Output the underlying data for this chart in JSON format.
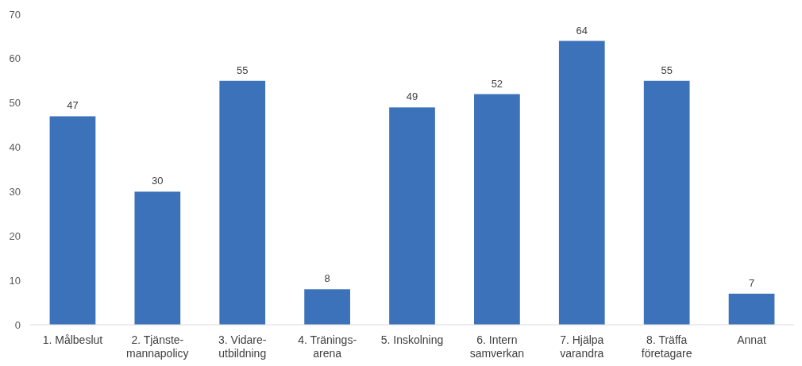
{
  "chart_data": {
    "type": "bar",
    "categories": [
      "1. Målbeslut",
      "2. Tjänste-\nmannapolicy",
      "3. Vidare-\nutbildning",
      "4. Tränings-\narena",
      "5. Inskolning",
      "6. Intern\nsamverkan",
      "7. Hjälpa\nvarandra",
      "8. Träffa\nföretagare",
      "Annat"
    ],
    "values": [
      47,
      30,
      55,
      8,
      49,
      52,
      64,
      55,
      7
    ],
    "color": "#3c72b9",
    "ylim": [
      0,
      70
    ],
    "yticks": [
      0,
      10,
      20,
      30,
      40,
      50,
      60,
      70
    ],
    "grid": false,
    "data_labels": true
  }
}
